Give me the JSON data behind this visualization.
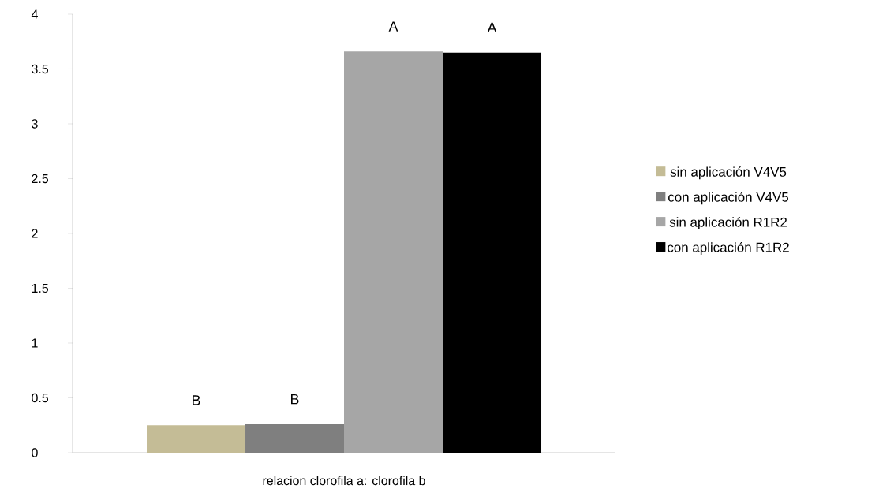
{
  "chart_data": {
    "type": "bar",
    "categories": [
      "relacion clorofila a: clorofila b"
    ],
    "series": [
      {
        "name": "sin aplicación V4V5",
        "color": "#c4bc96",
        "values": [
          0.25
        ]
      },
      {
        "name": "con aplicación V4V5",
        "color": "#7f7f7f",
        "values": [
          0.26
        ]
      },
      {
        "name": "sin aplicación R1R2",
        "color": "#a6a6a6",
        "values": [
          3.66
        ]
      },
      {
        "name": "con aplicación R1R2",
        "color": "#000000",
        "values": [
          3.65
        ]
      }
    ],
    "ylim": [
      0,
      4
    ],
    "yticks": [
      0,
      0.5,
      1,
      1.5,
      2,
      2.5,
      3,
      3.5,
      4
    ],
    "grid": false,
    "legend": "right",
    "annotations": [
      "B",
      "B",
      "A",
      "A"
    ]
  }
}
